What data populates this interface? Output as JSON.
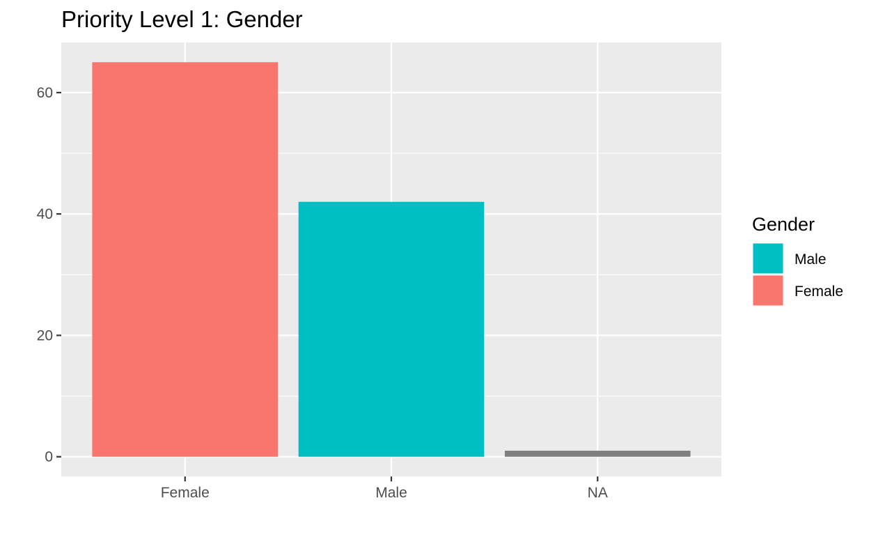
{
  "chart_data": {
    "type": "bar",
    "title": "Priority Level 1: Gender",
    "xlabel": "",
    "ylabel": "",
    "categories": [
      "Female",
      "Male",
      "NA"
    ],
    "values": [
      65,
      42,
      1
    ],
    "bar_colors": [
      "#F8766D",
      "#00BFC4",
      "#7F7F7F"
    ],
    "ylim": [
      -3.25,
      68.25
    ],
    "y_ticks": [
      0,
      20,
      40,
      60
    ],
    "grid": true,
    "panel_background": "#EBEBEB",
    "gridline_color": "#FFFFFF",
    "legend": {
      "title": "Gender",
      "position": "right",
      "items": [
        {
          "label": "Male",
          "color": "#00BFC4"
        },
        {
          "label": "Female",
          "color": "#F8766D"
        }
      ]
    }
  }
}
